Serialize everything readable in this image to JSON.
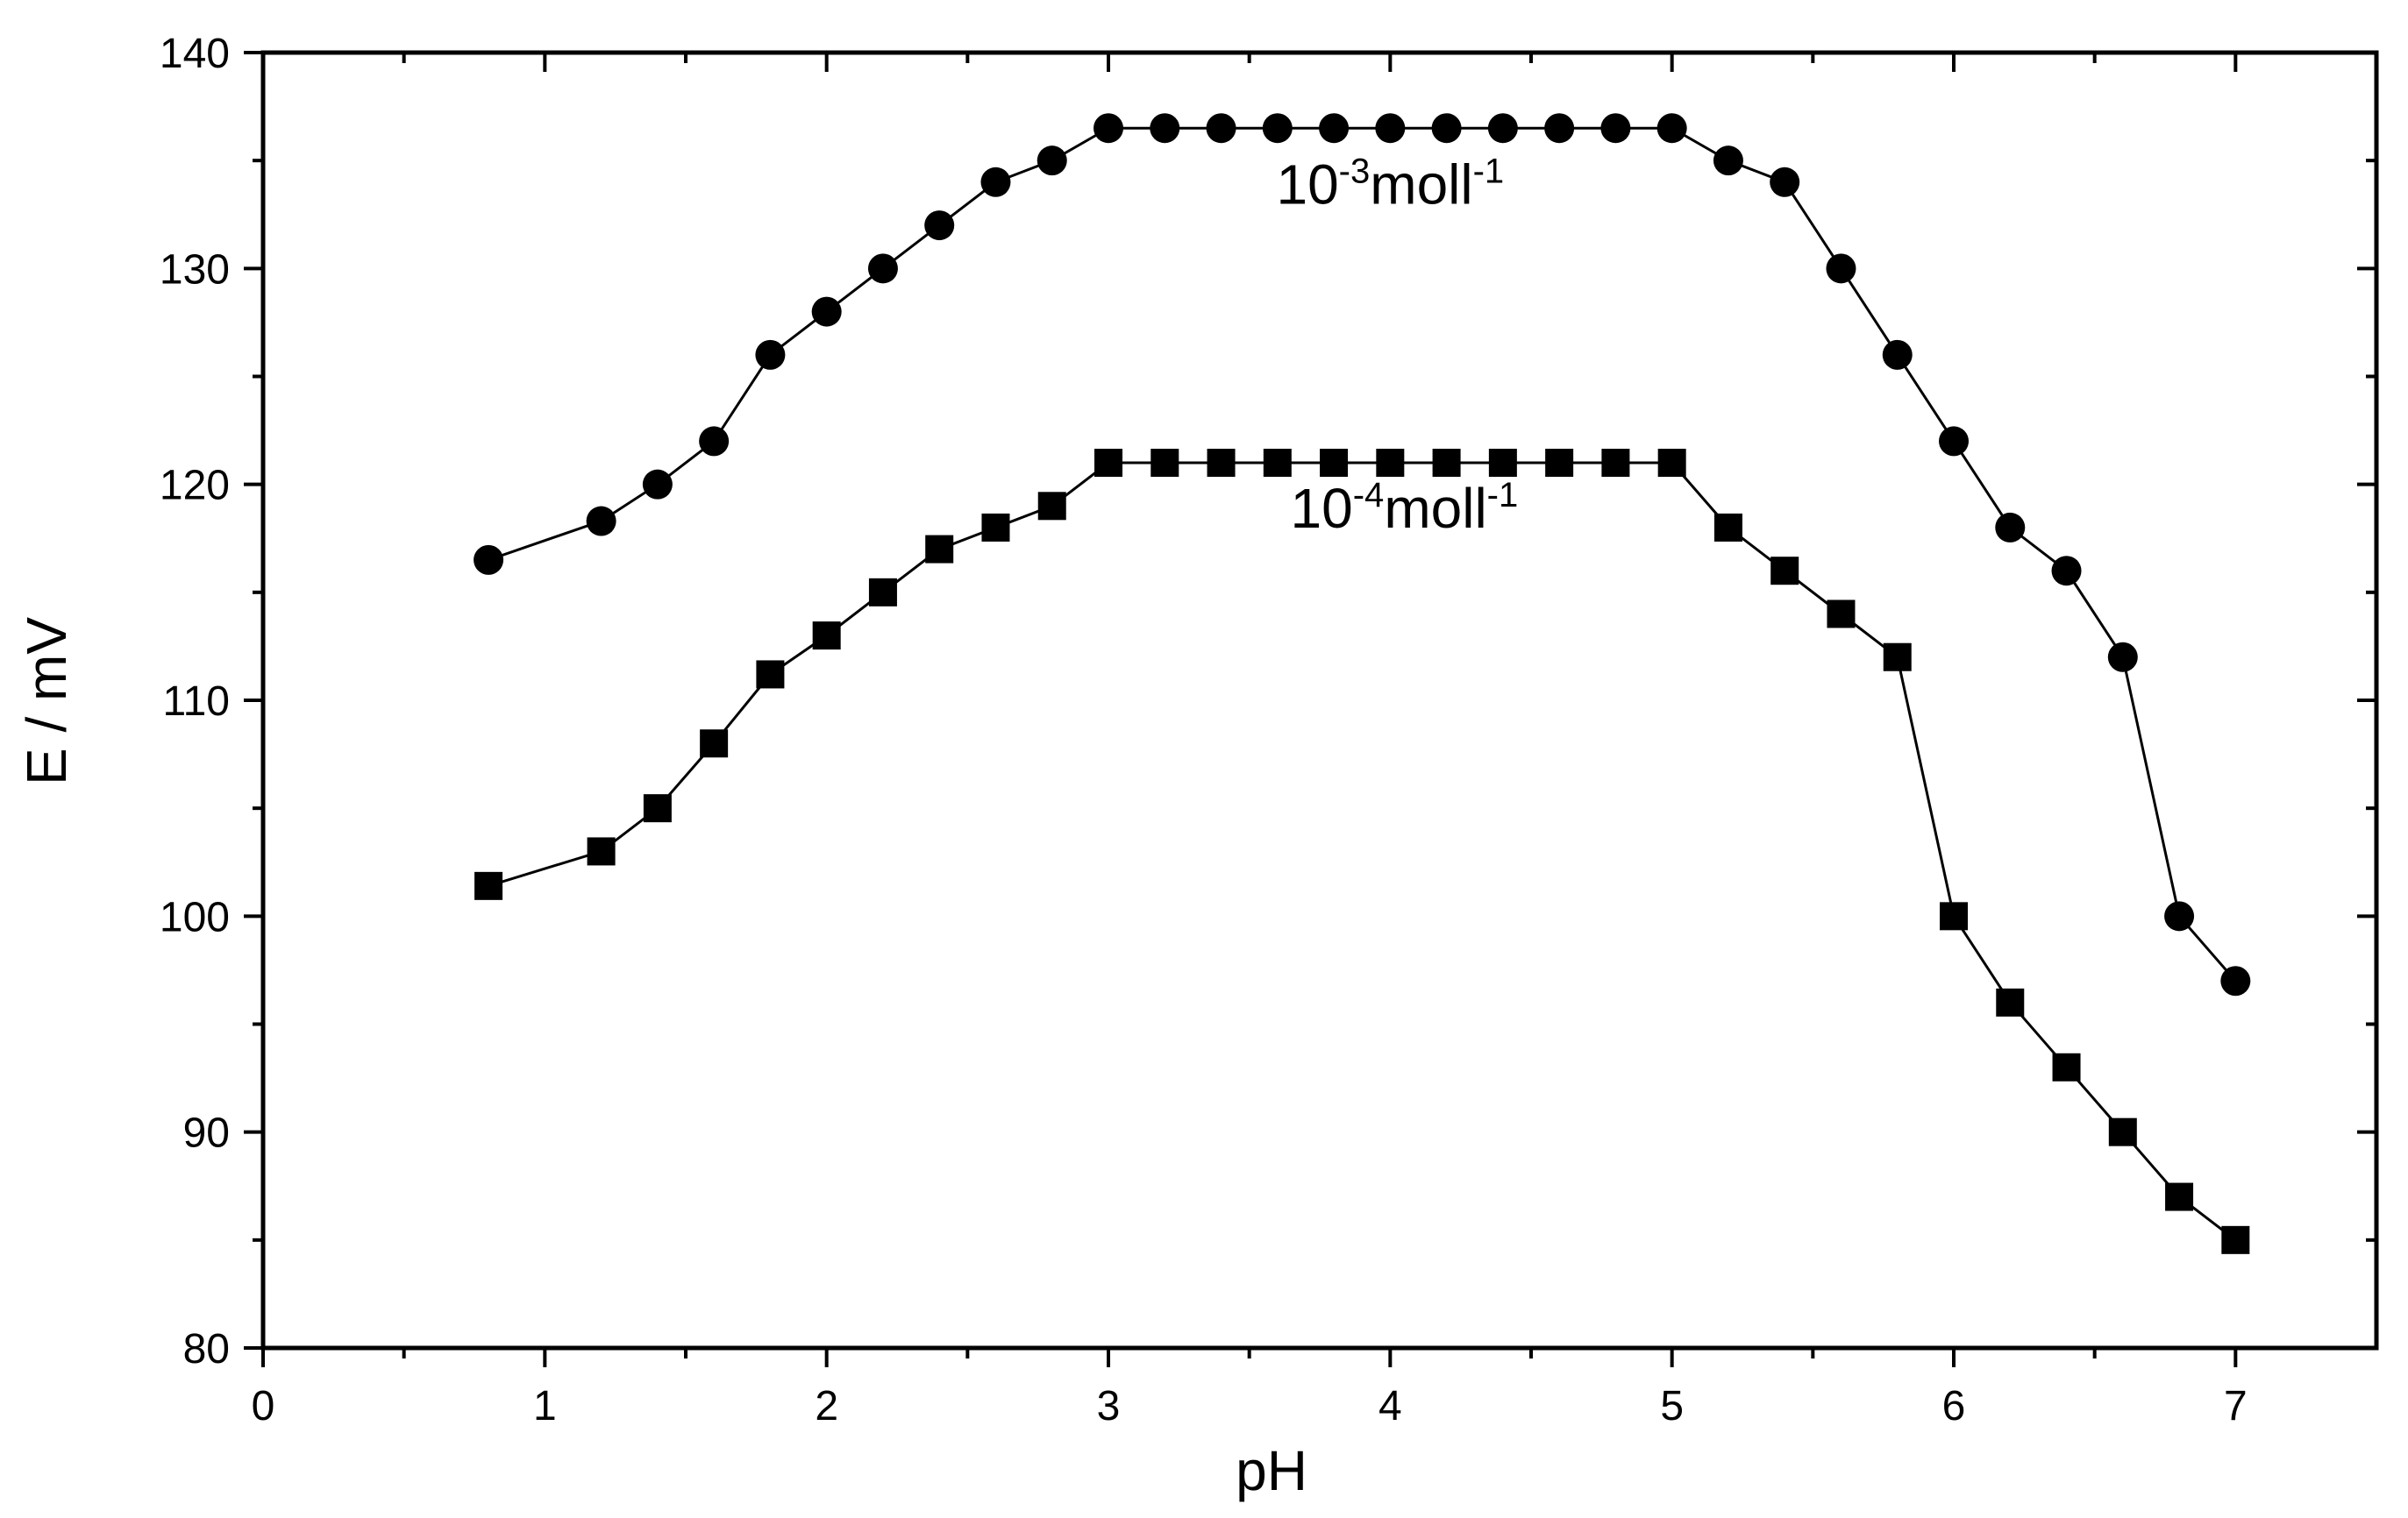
{
  "chart_data": {
    "type": "line",
    "xlabel": "pH",
    "ylabel": "E / mV",
    "xlim": [
      0,
      7.5
    ],
    "ylim": [
      80,
      140
    ],
    "xticks": [
      0,
      1,
      2,
      3,
      4,
      5,
      6,
      7
    ],
    "xticks_minor": [
      0.5,
      1.5,
      2.5,
      3.5,
      4.5,
      5.5,
      6.5
    ],
    "yticks": [
      80,
      90,
      100,
      110,
      120,
      130,
      140
    ],
    "yticks_minor": [
      85,
      95,
      105,
      115,
      125,
      135
    ],
    "grid": false,
    "legend": "none",
    "series": [
      {
        "marker": "circle",
        "color": "#000000",
        "x": [
          0.8,
          1.2,
          1.4,
          1.6,
          1.8,
          2.0,
          2.2,
          2.4,
          2.6,
          2.8,
          3.0,
          3.2,
          3.4,
          3.6,
          3.8,
          4.0,
          4.2,
          4.4,
          4.6,
          4.8,
          5.0,
          5.2,
          5.4,
          5.6,
          5.8,
          6.0,
          6.2,
          6.4,
          6.6,
          6.8,
          7.0
        ],
        "y": [
          116.5,
          118.3,
          120,
          122,
          126,
          128,
          130,
          132,
          134,
          135,
          136.5,
          136.5,
          136.5,
          136.5,
          136.5,
          136.5,
          136.5,
          136.5,
          136.5,
          136.5,
          136.5,
          135,
          134,
          130,
          126,
          122,
          118,
          116,
          112,
          100,
          97
        ]
      },
      {
        "marker": "square",
        "color": "#000000",
        "x": [
          0.8,
          1.2,
          1.4,
          1.6,
          1.8,
          2.0,
          2.2,
          2.4,
          2.6,
          2.8,
          3.0,
          3.2,
          3.4,
          3.6,
          3.8,
          4.0,
          4.2,
          4.4,
          4.6,
          4.8,
          5.0,
          5.2,
          5.4,
          5.6,
          5.8,
          6.0,
          6.2,
          6.4,
          6.6,
          6.8,
          7.0
        ],
        "y": [
          101.4,
          103,
          105,
          108,
          111.2,
          113,
          115,
          117,
          118,
          119,
          121,
          121,
          121,
          121,
          121,
          121,
          121,
          121,
          121,
          121,
          121,
          118,
          116,
          114,
          112,
          100,
          96,
          93,
          90,
          87,
          85
        ]
      }
    ],
    "annotations": [
      {
        "base": "10",
        "exp1": "-3",
        "mid": "moll",
        "exp2": "-1",
        "x": 4.0,
        "y": 133
      },
      {
        "base": "10",
        "exp1": "-4",
        "mid": "moll",
        "exp2": "-1",
        "x": 4.05,
        "y": 118
      }
    ]
  }
}
